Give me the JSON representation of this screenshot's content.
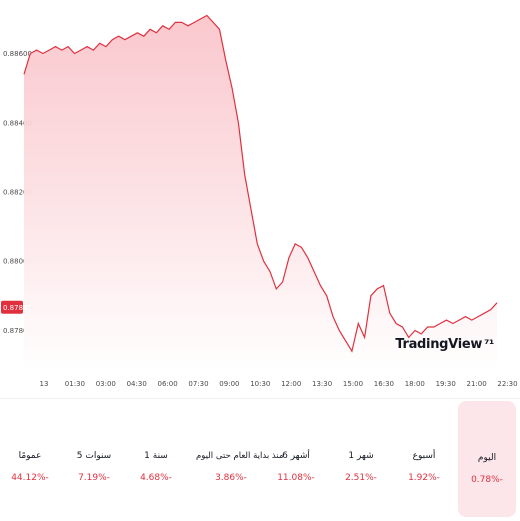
{
  "colors": {
    "line": "#e0303e",
    "area_top": "#f9c2c8",
    "area_bottom": "#ffffff",
    "price_tag": "#e0303e",
    "negative": "#e0303e"
  },
  "chart_data": {
    "type": "area",
    "x_ticks": [
      "13",
      "01:30",
      "03:00",
      "04:30",
      "06:00",
      "07:30",
      "09:00",
      "10:30",
      "12:00",
      "13:30",
      "15:00",
      "16:30",
      "18:00",
      "19:30",
      "21:00",
      "22:30"
    ],
    "y_ticks": [
      "0.88600",
      "0.88400",
      "0.88200",
      "0.88000",
      "0.87800"
    ],
    "ylim": [
      0.8768,
      0.8872
    ],
    "last_price": "0.87867",
    "series": [
      {
        "values": [
          0.8854,
          0.886,
          0.8861,
          0.886,
          0.8861,
          0.8862,
          0.8861,
          0.8862,
          0.886,
          0.8861,
          0.8862,
          0.8861,
          0.8863,
          0.8862,
          0.8864,
          0.8865,
          0.8864,
          0.8865,
          0.8866,
          0.8865,
          0.8867,
          0.8866,
          0.8868,
          0.8867,
          0.8869,
          0.8869,
          0.8868,
          0.8869,
          0.887,
          0.8871,
          0.8869,
          0.8867,
          0.8858,
          0.885,
          0.884,
          0.8825,
          0.8815,
          0.8805,
          0.88,
          0.8797,
          0.8792,
          0.8794,
          0.8801,
          0.8805,
          0.8804,
          0.8801,
          0.8797,
          0.8793,
          0.879,
          0.8784,
          0.878,
          0.8777,
          0.8774,
          0.8782,
          0.8778,
          0.879,
          0.8792,
          0.8793,
          0.8785,
          0.8782,
          0.8781,
          0.8778,
          0.878,
          0.8779,
          0.8781,
          0.8781,
          0.8782,
          0.8783,
          0.8782,
          0.8783,
          0.8784,
          0.8783,
          0.8784,
          0.8785,
          0.8786,
          0.8788
        ]
      }
    ]
  },
  "watermark": {
    "text": "TradingView",
    "icon": "tv-logo-icon"
  },
  "performance": [
    {
      "label": "اليوم",
      "value": "0.78%-"
    },
    {
      "label": "أسبوع",
      "value": "1.92%-"
    },
    {
      "label": "1 شهر",
      "value": "2.51%-"
    },
    {
      "label": "6 أشهر",
      "value": "11.08%-"
    },
    {
      "label": "منذ بداية العام حتى اليوم",
      "value": "3.86%-"
    },
    {
      "label": "1 سنة",
      "value": "4.68%-"
    },
    {
      "label": "5 سنوات",
      "value": "7.19%-"
    },
    {
      "label": "عمومًا",
      "value": "44.12%-"
    }
  ]
}
